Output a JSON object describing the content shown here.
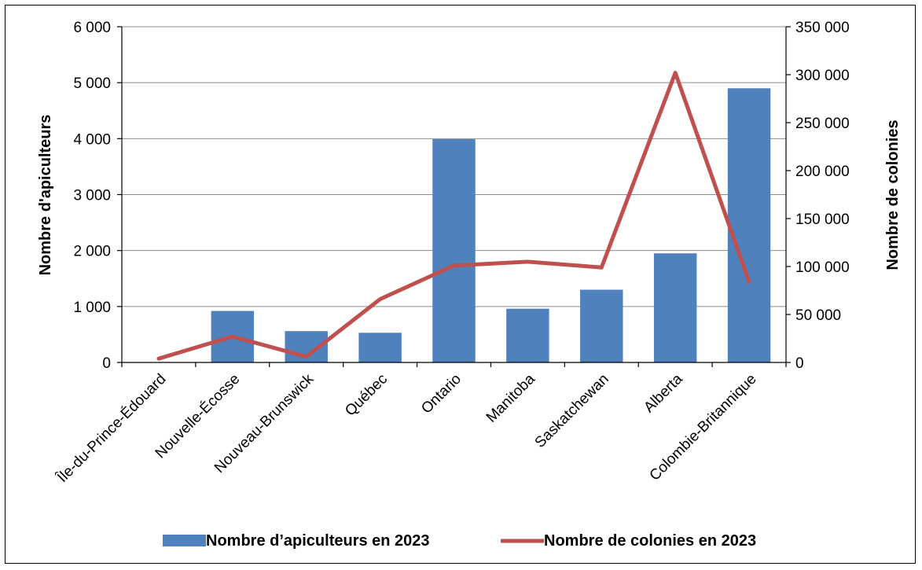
{
  "chart_data": {
    "type": "bar",
    "categories": [
      "Île-du-Prince-Édouard",
      "Nouvelle-Écosse",
      "Nouveau-Brunswick",
      "Québec",
      "Ontario",
      "Manitoba",
      "Saskatchewan",
      "Alberta",
      "Colombie-Britannique"
    ],
    "series": [
      {
        "name": "Nombre d’apiculteurs  en 2023",
        "type": "bar",
        "axis": "left",
        "color": "#4F81BD",
        "values": [
          0,
          920,
          560,
          530,
          3990,
          960,
          1300,
          1950,
          4900
        ]
      },
      {
        "name": "Nombre de colonies en  2023",
        "type": "line",
        "axis": "right",
        "color": "#C0504D",
        "values": [
          4000,
          27000,
          6000,
          66000,
          101000,
          105000,
          99000,
          302000,
          84000
        ]
      }
    ],
    "ylabel": "Nombre d'apiculteurs",
    "ylim": [
      0,
      6000
    ],
    "yticks": [
      "0",
      "1 000",
      "2 000",
      "3 000",
      "4 000",
      "5 000",
      "6 000"
    ],
    "y2label": "Nombre de colonies",
    "y2lim": [
      0,
      350000
    ],
    "y2ticks": [
      "0",
      "50 000",
      "100 000",
      "150 000",
      "200 000",
      "250 000",
      "300 000",
      "350 000"
    ],
    "grid": true,
    "legend_position": "bottom"
  }
}
